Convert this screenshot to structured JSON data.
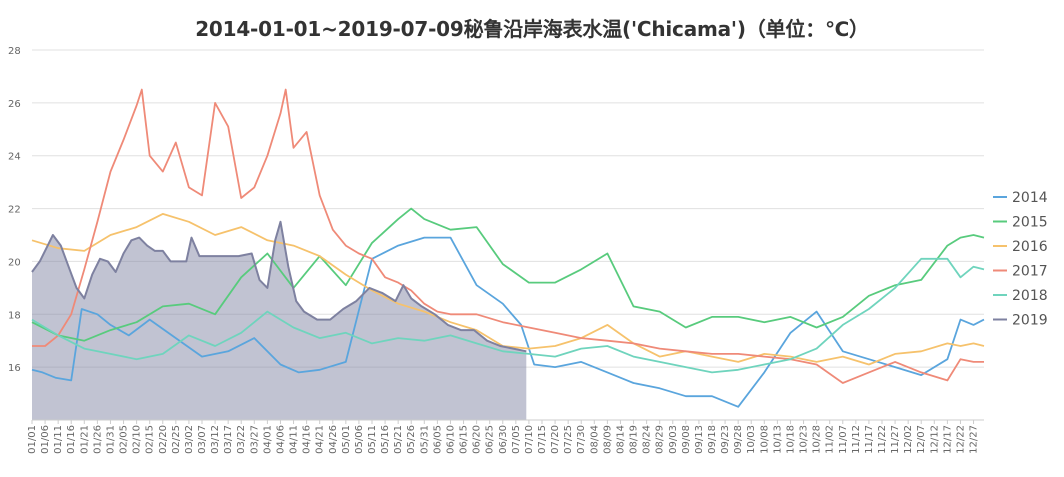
{
  "chart_data": {
    "type": "line",
    "title": "2014-01-01~2019-07-09秘鲁沿岸海表水温('Chicama')（单位：℃）",
    "ylim": [
      14,
      28
    ],
    "y_ticks": [
      "16",
      "18",
      "20",
      "22",
      "24",
      "26",
      "28"
    ],
    "x_tick_labels": [
      "01/01",
      "01/06",
      "01/11",
      "01/16",
      "01/21",
      "01/26",
      "01/31",
      "02/05",
      "02/10",
      "02/15",
      "02/20",
      "02/25",
      "03/02",
      "03/07",
      "03/12",
      "03/17",
      "03/22",
      "03/27",
      "04/01",
      "04/06",
      "04/11",
      "04/16",
      "04/21",
      "04/26",
      "05/01",
      "05/06",
      "05/11",
      "05/16",
      "05/21",
      "05/26",
      "05/31",
      "06/05",
      "06/10",
      "06/15",
      "06/20",
      "06/25",
      "06/30",
      "07/05",
      "07/10",
      "07/15",
      "07/20",
      "07/25",
      "07/30",
      "08/04",
      "08/09",
      "08/14",
      "08/19",
      "08/24",
      "08/29",
      "09/03",
      "09/08",
      "09/13",
      "09/18",
      "09/23",
      "09/28",
      "10/03",
      "10/08",
      "10/13",
      "10/18",
      "10/23",
      "10/28",
      "11/02",
      "11/07",
      "11/12",
      "11/17",
      "11/22",
      "11/27",
      "12/02",
      "12/07",
      "12/12",
      "12/17",
      "12/22",
      "12/27"
    ],
    "x_unit": "day-of-year (1 = 01/01)",
    "grid": true,
    "legend_position": "right",
    "series": [
      {
        "name": "2014",
        "color": "#5aa5dd",
        "area": false,
        "points": [
          [
            1,
            15.9
          ],
          [
            5,
            15.8
          ],
          [
            10,
            15.6
          ],
          [
            16,
            15.5
          ],
          [
            20,
            18.2
          ],
          [
            26,
            18.0
          ],
          [
            31,
            17.6
          ],
          [
            38,
            17.2
          ],
          [
            46,
            17.8
          ],
          [
            56,
            17.1
          ],
          [
            66,
            16.4
          ],
          [
            76,
            16.6
          ],
          [
            86,
            17.1
          ],
          [
            96,
            16.1
          ],
          [
            103,
            15.8
          ],
          [
            111,
            15.9
          ],
          [
            121,
            16.2
          ],
          [
            131,
            20.1
          ],
          [
            141,
            20.6
          ],
          [
            151,
            20.9
          ],
          [
            161,
            20.9
          ],
          [
            171,
            19.1
          ],
          [
            181,
            18.4
          ],
          [
            188,
            17.6
          ],
          [
            193,
            16.1
          ],
          [
            201,
            16.0
          ],
          [
            211,
            16.2
          ],
          [
            221,
            15.8
          ],
          [
            231,
            15.4
          ],
          [
            241,
            15.2
          ],
          [
            251,
            14.9
          ],
          [
            261,
            14.9
          ],
          [
            271,
            14.5
          ],
          [
            281,
            15.8
          ],
          [
            291,
            17.3
          ],
          [
            301,
            18.1
          ],
          [
            311,
            16.6
          ],
          [
            321,
            16.3
          ],
          [
            331,
            16.0
          ],
          [
            341,
            15.7
          ],
          [
            351,
            16.3
          ],
          [
            356,
            17.8
          ],
          [
            361,
            17.6
          ],
          [
            365,
            17.8
          ]
        ]
      },
      {
        "name": "2015",
        "color": "#58cb7d",
        "area": false,
        "points": [
          [
            1,
            17.7
          ],
          [
            11,
            17.2
          ],
          [
            21,
            17.0
          ],
          [
            31,
            17.4
          ],
          [
            41,
            17.7
          ],
          [
            51,
            18.3
          ],
          [
            61,
            18.4
          ],
          [
            71,
            18.0
          ],
          [
            81,
            19.4
          ],
          [
            91,
            20.3
          ],
          [
            101,
            19.0
          ],
          [
            111,
            20.2
          ],
          [
            121,
            19.1
          ],
          [
            131,
            20.7
          ],
          [
            141,
            21.6
          ],
          [
            146,
            22.0
          ],
          [
            151,
            21.6
          ],
          [
            161,
            21.2
          ],
          [
            171,
            21.3
          ],
          [
            181,
            19.9
          ],
          [
            191,
            19.2
          ],
          [
            201,
            19.2
          ],
          [
            211,
            19.7
          ],
          [
            221,
            20.3
          ],
          [
            231,
            18.3
          ],
          [
            241,
            18.1
          ],
          [
            251,
            17.5
          ],
          [
            261,
            17.9
          ],
          [
            271,
            17.9
          ],
          [
            281,
            17.7
          ],
          [
            291,
            17.9
          ],
          [
            301,
            17.5
          ],
          [
            311,
            17.9
          ],
          [
            321,
            18.7
          ],
          [
            331,
            19.1
          ],
          [
            341,
            19.3
          ],
          [
            351,
            20.6
          ],
          [
            356,
            20.9
          ],
          [
            361,
            21.0
          ],
          [
            365,
            20.9
          ]
        ]
      },
      {
        "name": "2016",
        "color": "#f6c26c",
        "area": false,
        "points": [
          [
            1,
            20.8
          ],
          [
            11,
            20.5
          ],
          [
            21,
            20.4
          ],
          [
            31,
            21.0
          ],
          [
            41,
            21.3
          ],
          [
            51,
            21.8
          ],
          [
            61,
            21.5
          ],
          [
            71,
            21.0
          ],
          [
            81,
            21.3
          ],
          [
            91,
            20.8
          ],
          [
            101,
            20.6
          ],
          [
            111,
            20.2
          ],
          [
            121,
            19.5
          ],
          [
            131,
            18.9
          ],
          [
            141,
            18.4
          ],
          [
            151,
            18.1
          ],
          [
            161,
            17.7
          ],
          [
            171,
            17.4
          ],
          [
            181,
            16.8
          ],
          [
            191,
            16.7
          ],
          [
            201,
            16.8
          ],
          [
            211,
            17.1
          ],
          [
            221,
            17.6
          ],
          [
            231,
            16.9
          ],
          [
            241,
            16.4
          ],
          [
            251,
            16.6
          ],
          [
            261,
            16.4
          ],
          [
            271,
            16.2
          ],
          [
            281,
            16.5
          ],
          [
            291,
            16.4
          ],
          [
            301,
            16.2
          ],
          [
            311,
            16.4
          ],
          [
            321,
            16.1
          ],
          [
            331,
            16.5
          ],
          [
            341,
            16.6
          ],
          [
            351,
            16.9
          ],
          [
            356,
            16.8
          ],
          [
            361,
            16.9
          ],
          [
            365,
            16.8
          ]
        ]
      },
      {
        "name": "2017",
        "color": "#ef8a78",
        "area": false,
        "points": [
          [
            1,
            16.8
          ],
          [
            6,
            16.8
          ],
          [
            11,
            17.2
          ],
          [
            16,
            18.0
          ],
          [
            21,
            19.7
          ],
          [
            26,
            21.5
          ],
          [
            31,
            23.4
          ],
          [
            36,
            24.6
          ],
          [
            41,
            25.9
          ],
          [
            43,
            26.5
          ],
          [
            46,
            24.0
          ],
          [
            51,
            23.4
          ],
          [
            56,
            24.5
          ],
          [
            61,
            22.8
          ],
          [
            66,
            22.5
          ],
          [
            71,
            26.0
          ],
          [
            76,
            25.1
          ],
          [
            81,
            22.4
          ],
          [
            86,
            22.8
          ],
          [
            91,
            24.0
          ],
          [
            96,
            25.6
          ],
          [
            98,
            26.5
          ],
          [
            101,
            24.3
          ],
          [
            106,
            24.9
          ],
          [
            111,
            22.5
          ],
          [
            116,
            21.2
          ],
          [
            121,
            20.6
          ],
          [
            126,
            20.3
          ],
          [
            131,
            20.1
          ],
          [
            136,
            19.4
          ],
          [
            141,
            19.2
          ],
          [
            146,
            18.9
          ],
          [
            151,
            18.4
          ],
          [
            156,
            18.1
          ],
          [
            161,
            18.0
          ],
          [
            171,
            18.0
          ],
          [
            181,
            17.7
          ],
          [
            191,
            17.5
          ],
          [
            201,
            17.3
          ],
          [
            211,
            17.1
          ],
          [
            221,
            17.0
          ],
          [
            231,
            16.9
          ],
          [
            241,
            16.7
          ],
          [
            251,
            16.6
          ],
          [
            261,
            16.5
          ],
          [
            271,
            16.5
          ],
          [
            281,
            16.4
          ],
          [
            291,
            16.3
          ],
          [
            301,
            16.1
          ],
          [
            311,
            15.4
          ],
          [
            321,
            15.8
          ],
          [
            331,
            16.2
          ],
          [
            341,
            15.8
          ],
          [
            351,
            15.5
          ],
          [
            356,
            16.3
          ],
          [
            361,
            16.2
          ],
          [
            365,
            16.2
          ]
        ]
      },
      {
        "name": "2018",
        "color": "#6fd4bd",
        "area": false,
        "points": [
          [
            1,
            17.8
          ],
          [
            11,
            17.2
          ],
          [
            21,
            16.7
          ],
          [
            31,
            16.5
          ],
          [
            41,
            16.3
          ],
          [
            51,
            16.5
          ],
          [
            61,
            17.2
          ],
          [
            71,
            16.8
          ],
          [
            81,
            17.3
          ],
          [
            91,
            18.1
          ],
          [
            101,
            17.5
          ],
          [
            111,
            17.1
          ],
          [
            121,
            17.3
          ],
          [
            131,
            16.9
          ],
          [
            141,
            17.1
          ],
          [
            151,
            17.0
          ],
          [
            161,
            17.2
          ],
          [
            171,
            16.9
          ],
          [
            181,
            16.6
          ],
          [
            191,
            16.5
          ],
          [
            201,
            16.4
          ],
          [
            211,
            16.7
          ],
          [
            221,
            16.8
          ],
          [
            231,
            16.4
          ],
          [
            241,
            16.2
          ],
          [
            251,
            16.0
          ],
          [
            261,
            15.8
          ],
          [
            271,
            15.9
          ],
          [
            281,
            16.1
          ],
          [
            291,
            16.3
          ],
          [
            301,
            16.7
          ],
          [
            311,
            17.6
          ],
          [
            321,
            18.2
          ],
          [
            331,
            19.0
          ],
          [
            341,
            20.1
          ],
          [
            351,
            20.1
          ],
          [
            356,
            19.4
          ],
          [
            361,
            19.8
          ],
          [
            365,
            19.7
          ]
        ]
      },
      {
        "name": "2019",
        "color": "#7e81a0",
        "area": true,
        "points": [
          [
            1,
            19.6
          ],
          [
            4,
            20.0
          ],
          [
            7,
            20.6
          ],
          [
            9,
            21.0
          ],
          [
            12,
            20.6
          ],
          [
            15,
            19.8
          ],
          [
            18,
            19.0
          ],
          [
            21,
            18.6
          ],
          [
            24,
            19.5
          ],
          [
            27,
            20.1
          ],
          [
            30,
            20.0
          ],
          [
            33,
            19.6
          ],
          [
            36,
            20.3
          ],
          [
            39,
            20.8
          ],
          [
            42,
            20.9
          ],
          [
            45,
            20.6
          ],
          [
            48,
            20.4
          ],
          [
            51,
            20.4
          ],
          [
            54,
            20.0
          ],
          [
            57,
            20.0
          ],
          [
            60,
            20.0
          ],
          [
            62,
            20.9
          ],
          [
            65,
            20.2
          ],
          [
            70,
            20.2
          ],
          [
            75,
            20.2
          ],
          [
            80,
            20.2
          ],
          [
            85,
            20.3
          ],
          [
            88,
            19.3
          ],
          [
            91,
            19.0
          ],
          [
            94,
            20.8
          ],
          [
            96,
            21.5
          ],
          [
            99,
            19.8
          ],
          [
            102,
            18.5
          ],
          [
            105,
            18.1
          ],
          [
            110,
            17.8
          ],
          [
            115,
            17.8
          ],
          [
            120,
            18.2
          ],
          [
            125,
            18.5
          ],
          [
            130,
            19.0
          ],
          [
            135,
            18.8
          ],
          [
            140,
            18.5
          ],
          [
            143,
            19.1
          ],
          [
            146,
            18.6
          ],
          [
            150,
            18.3
          ],
          [
            155,
            18.0
          ],
          [
            160,
            17.6
          ],
          [
            165,
            17.4
          ],
          [
            170,
            17.4
          ],
          [
            175,
            17.0
          ],
          [
            180,
            16.8
          ],
          [
            185,
            16.7
          ],
          [
            190,
            16.6
          ]
        ]
      }
    ]
  }
}
